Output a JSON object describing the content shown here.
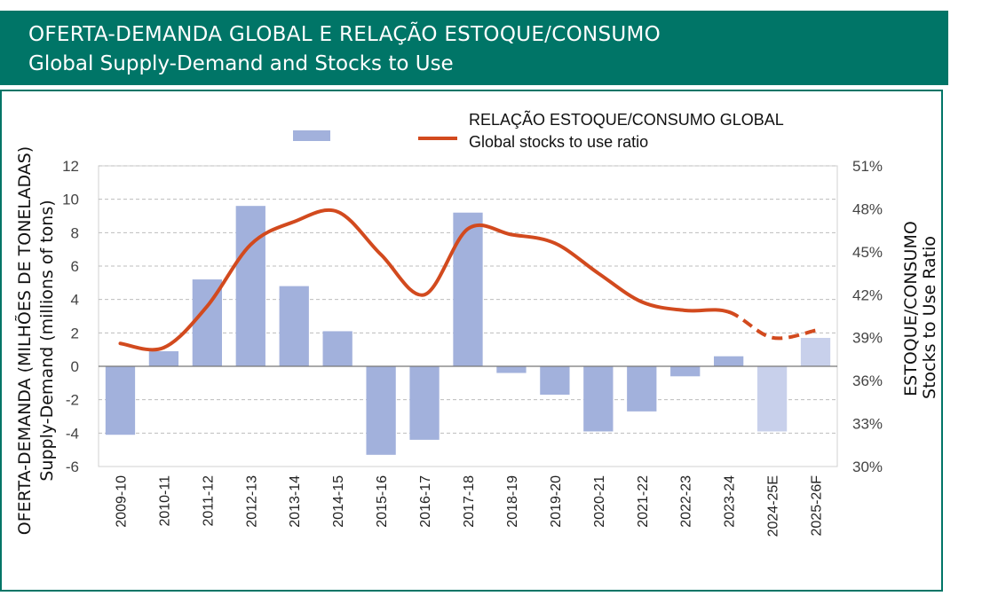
{
  "header": {
    "title_pt": "OFERTA-DEMANDA GLOBAL  E  RELAÇÃO ESTOQUE/CONSUMO",
    "title_en": "Global Supply-Demand and Stocks to Use"
  },
  "colors": {
    "header_bg": "#007567",
    "bar": "#a2b1dc",
    "bar_projected": "#c8d0eb",
    "line": "#d24a1e"
  },
  "chart_data": {
    "type": "bar",
    "categories": [
      "2009-10",
      "2010-11",
      "2011-12",
      "2012-13",
      "2013-14",
      "2014-15",
      "2015-16",
      "2016-17",
      "2017-18",
      "2018-19",
      "2019-20",
      "2020-21",
      "2021-22",
      "2022-23",
      "2023-24",
      "2024-25E",
      "2025-26F"
    ],
    "series": [
      {
        "type": "bar",
        "axis": "left",
        "values": [
          -4.1,
          0.9,
          5.2,
          9.6,
          4.8,
          2.1,
          -5.3,
          -4.4,
          9.2,
          -0.4,
          -1.7,
          -3.9,
          -2.7,
          -0.6,
          0.6,
          -3.9,
          1.7
        ],
        "projected_from_index": 15
      },
      {
        "type": "line",
        "axis": "right",
        "name_pt": "RELAÇÃO ESTOQUE/CONSUMO GLOBAL",
        "name_en": "Global stocks to use ratio",
        "values": [
          38.6,
          38.3,
          41.2,
          45.5,
          47.1,
          47.8,
          44.8,
          42.0,
          46.6,
          46.2,
          45.6,
          43.5,
          41.5,
          40.9,
          40.8,
          39.0,
          39.5
        ],
        "dashed_from_index": 14
      }
    ],
    "yaxis_left": {
      "title_pt": "OFERTA-DEMANDA (MILHÕES DE TONELADAS)",
      "title_en": "Supply-Demand (millions of tons)",
      "ylim": [
        -6,
        12
      ],
      "ticks": [
        "12",
        "10",
        "8",
        "6",
        "4",
        "2",
        "0",
        "-2",
        "-4",
        "-6"
      ]
    },
    "yaxis_right": {
      "title_pt": "ESTOQUE/CONSUMO",
      "title_en": "Stocks to Use Ratio",
      "ylim": [
        30,
        51
      ],
      "ticks": [
        "51%",
        "48%",
        "45%",
        "42%",
        "39%",
        "36%",
        "33%",
        "30%"
      ]
    },
    "grid": true,
    "legend": "top"
  }
}
